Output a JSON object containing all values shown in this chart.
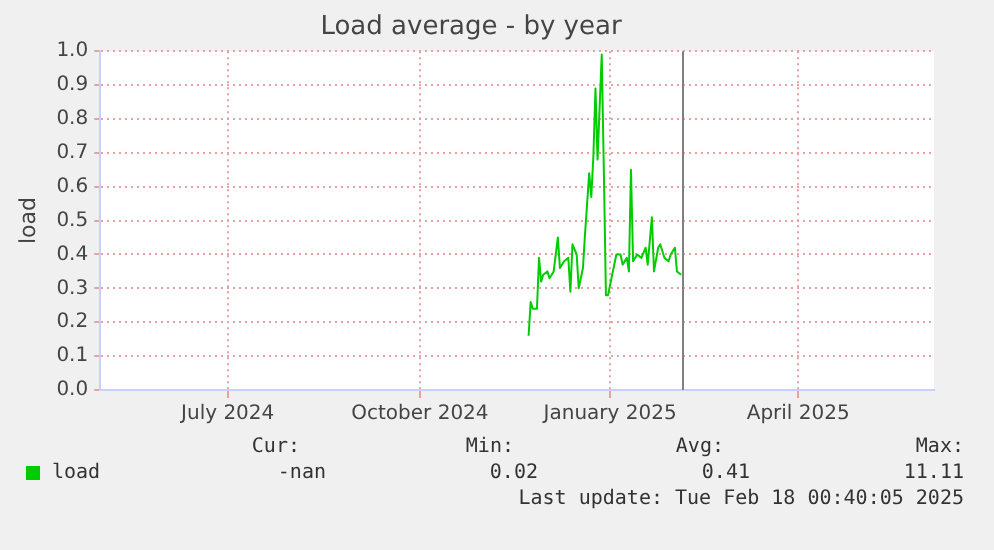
{
  "chart_data": {
    "type": "line",
    "title": "Load average - by year",
    "ylabel": "load",
    "x": [
      "2024-12-07",
      "2024-12-08",
      "2024-12-09",
      "2024-12-11",
      "2024-12-12",
      "2024-12-13",
      "2024-12-14",
      "2024-12-16",
      "2024-12-17",
      "2024-12-19",
      "2024-12-21",
      "2024-12-22",
      "2024-12-24",
      "2024-12-26",
      "2024-12-27",
      "2024-12-28",
      "2024-12-30",
      "2024-12-31",
      "2025-01-02",
      "2025-01-03",
      "2025-01-05",
      "2025-01-06",
      "2025-01-07",
      "2025-01-08",
      "2025-01-09",
      "2025-01-11",
      "2025-01-12",
      "2025-01-13",
      "2025-01-14",
      "2025-01-16",
      "2025-01-18",
      "2025-01-20",
      "2025-01-21",
      "2025-01-23",
      "2025-01-24",
      "2025-01-25",
      "2025-01-26",
      "2025-01-28",
      "2025-01-30",
      "2025-02-01",
      "2025-02-02",
      "2025-02-04",
      "2025-02-05",
      "2025-02-07",
      "2025-02-08",
      "2025-02-10",
      "2025-02-12",
      "2025-02-13",
      "2025-02-15",
      "2025-02-16",
      "2025-02-18"
    ],
    "series": [
      {
        "name": "load",
        "color": "#00cc00",
        "values": [
          0.16,
          0.26,
          0.24,
          0.24,
          0.39,
          0.32,
          0.34,
          0.35,
          0.33,
          0.35,
          0.45,
          0.36,
          0.38,
          0.39,
          0.29,
          0.43,
          0.4,
          0.3,
          0.36,
          0.46,
          0.64,
          0.57,
          0.69,
          0.89,
          0.68,
          0.99,
          0.65,
          0.28,
          0.28,
          0.34,
          0.4,
          0.4,
          0.37,
          0.39,
          0.35,
          0.65,
          0.38,
          0.4,
          0.39,
          0.42,
          0.37,
          0.51,
          0.35,
          0.42,
          0.43,
          0.39,
          0.38,
          0.4,
          0.42,
          0.35,
          0.34
        ]
      }
    ],
    "xlim": [
      "2024-05-16",
      "2025-06-19"
    ],
    "xticks": [
      {
        "value": "2024-07-16",
        "label": "July 2024"
      },
      {
        "value": "2024-10-16",
        "label": "October 2024"
      },
      {
        "value": "2025-01-15",
        "label": "January 2025"
      },
      {
        "value": "2025-04-15",
        "label": "April 2025"
      }
    ],
    "ylim": [
      0,
      1
    ],
    "yticks": [
      {
        "value": 0,
        "label": "0.0"
      },
      {
        "value": 0.1,
        "label": "0.1"
      },
      {
        "value": 0.2,
        "label": "0.2"
      },
      {
        "value": 0.3,
        "label": "0.3"
      },
      {
        "value": 0.4,
        "label": "0.4"
      },
      {
        "value": 0.5,
        "label": "0.5"
      },
      {
        "value": 0.6,
        "label": "0.6"
      },
      {
        "value": 0.7,
        "label": "0.7"
      },
      {
        "value": 0.8,
        "label": "0.8"
      },
      {
        "value": 0.9,
        "label": "0.9"
      },
      {
        "value": 1,
        "label": "1.0"
      }
    ],
    "ref_lines": [
      {
        "axis": "x",
        "value": "2025-02-18",
        "color": "#808080"
      }
    ],
    "grid": true,
    "legend": "bottom",
    "marker": "none",
    "line_style": "solid",
    "annotations": [
      "Cur:",
      "Min:",
      "Avg:",
      "Max:",
      "-nan",
      "0.02",
      "0.41",
      "11.11",
      "Last update: Tue Feb 18 00:40:05 2025"
    ]
  }
}
